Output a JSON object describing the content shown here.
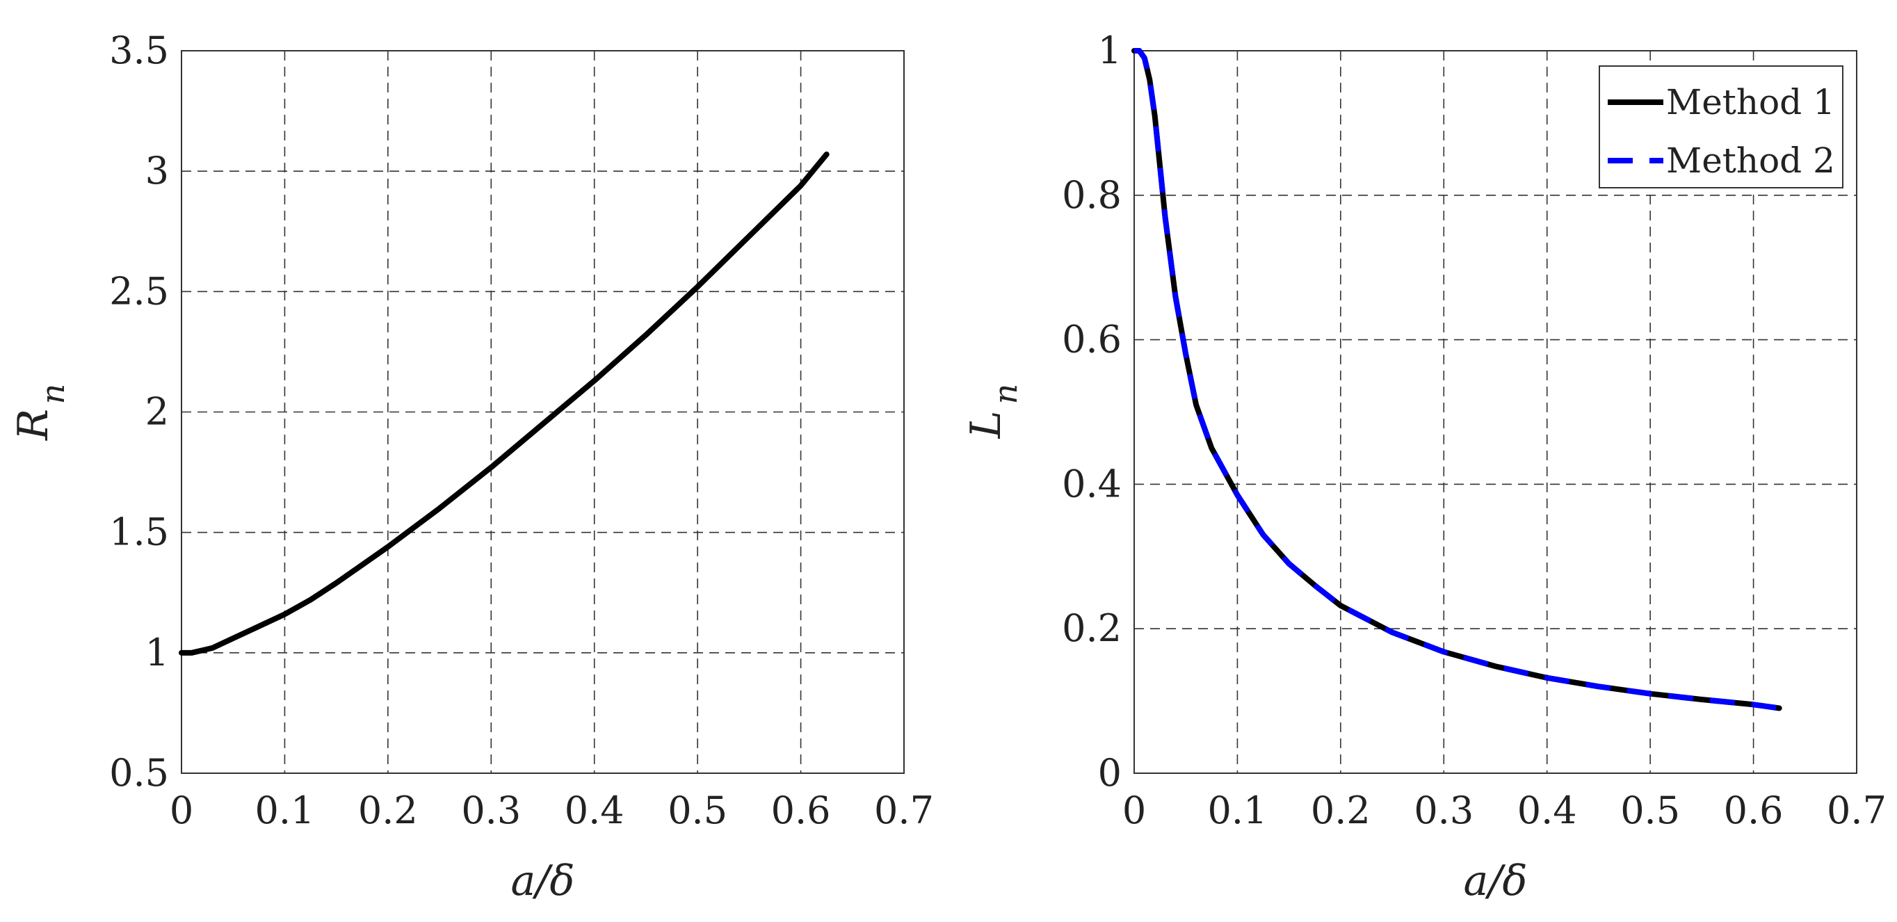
{
  "chart_data": [
    {
      "type": "line",
      "title": "",
      "xlabel": "a/δ",
      "ylabel": "R",
      "ylabel_subscript": "n",
      "xlim": [
        0,
        0.7
      ],
      "ylim": [
        0.5,
        3.5
      ],
      "xticks": [
        "0",
        "0.1",
        "0.2",
        "0.3",
        "0.4",
        "0.5",
        "0.6",
        "0.7"
      ],
      "yticks": [
        "0.5",
        "1",
        "1.5",
        "2",
        "2.5",
        "3",
        "3.5"
      ],
      "grid": true,
      "legend": null,
      "series": [
        {
          "color": "#000000",
          "style": "solid",
          "x": [
            0,
            0.01,
            0.02,
            0.03,
            0.05,
            0.075,
            0.1,
            0.125,
            0.15,
            0.2,
            0.25,
            0.3,
            0.35,
            0.4,
            0.45,
            0.5,
            0.55,
            0.6,
            0.625
          ],
          "y": [
            1.0,
            1.0,
            1.01,
            1.02,
            1.06,
            1.11,
            1.16,
            1.22,
            1.29,
            1.44,
            1.6,
            1.77,
            1.95,
            2.13,
            2.32,
            2.52,
            2.73,
            2.94,
            3.07
          ]
        }
      ]
    },
    {
      "type": "line",
      "title": "",
      "xlabel": "a/δ",
      "ylabel": "L",
      "ylabel_subscript": "n",
      "xlim": [
        0,
        0.7
      ],
      "ylim": [
        0,
        1
      ],
      "xticks": [
        "0",
        "0.1",
        "0.2",
        "0.3",
        "0.4",
        "0.5",
        "0.6",
        "0.7"
      ],
      "yticks": [
        "0",
        "0.2",
        "0.4",
        "0.6",
        "0.8",
        "1"
      ],
      "grid": true,
      "legend": "top-right",
      "series": [
        {
          "name": "Method 1",
          "color": "#000000",
          "style": "solid",
          "x": [
            0,
            0.005,
            0.01,
            0.015,
            0.02,
            0.025,
            0.03,
            0.04,
            0.05,
            0.06,
            0.075,
            0.1,
            0.125,
            0.15,
            0.175,
            0.2,
            0.25,
            0.3,
            0.35,
            0.4,
            0.45,
            0.5,
            0.55,
            0.6,
            0.625
          ],
          "y": [
            1.0,
            1.0,
            0.99,
            0.96,
            0.91,
            0.84,
            0.77,
            0.66,
            0.58,
            0.51,
            0.45,
            0.385,
            0.33,
            0.29,
            0.26,
            0.232,
            0.195,
            0.168,
            0.148,
            0.132,
            0.12,
            0.11,
            0.102,
            0.095,
            0.09
          ]
        },
        {
          "name": "Method 2",
          "color": "#0000ff",
          "style": "dashed",
          "x": [
            0,
            0.005,
            0.01,
            0.015,
            0.02,
            0.025,
            0.03,
            0.04,
            0.05,
            0.06,
            0.075,
            0.1,
            0.125,
            0.15,
            0.175,
            0.2,
            0.25,
            0.3,
            0.35,
            0.4,
            0.45,
            0.5,
            0.55,
            0.6,
            0.625
          ],
          "y": [
            1.0,
            1.0,
            0.99,
            0.96,
            0.91,
            0.84,
            0.77,
            0.66,
            0.58,
            0.51,
            0.45,
            0.385,
            0.33,
            0.29,
            0.26,
            0.232,
            0.195,
            0.168,
            0.148,
            0.132,
            0.12,
            0.11,
            0.102,
            0.095,
            0.09
          ]
        }
      ]
    }
  ]
}
